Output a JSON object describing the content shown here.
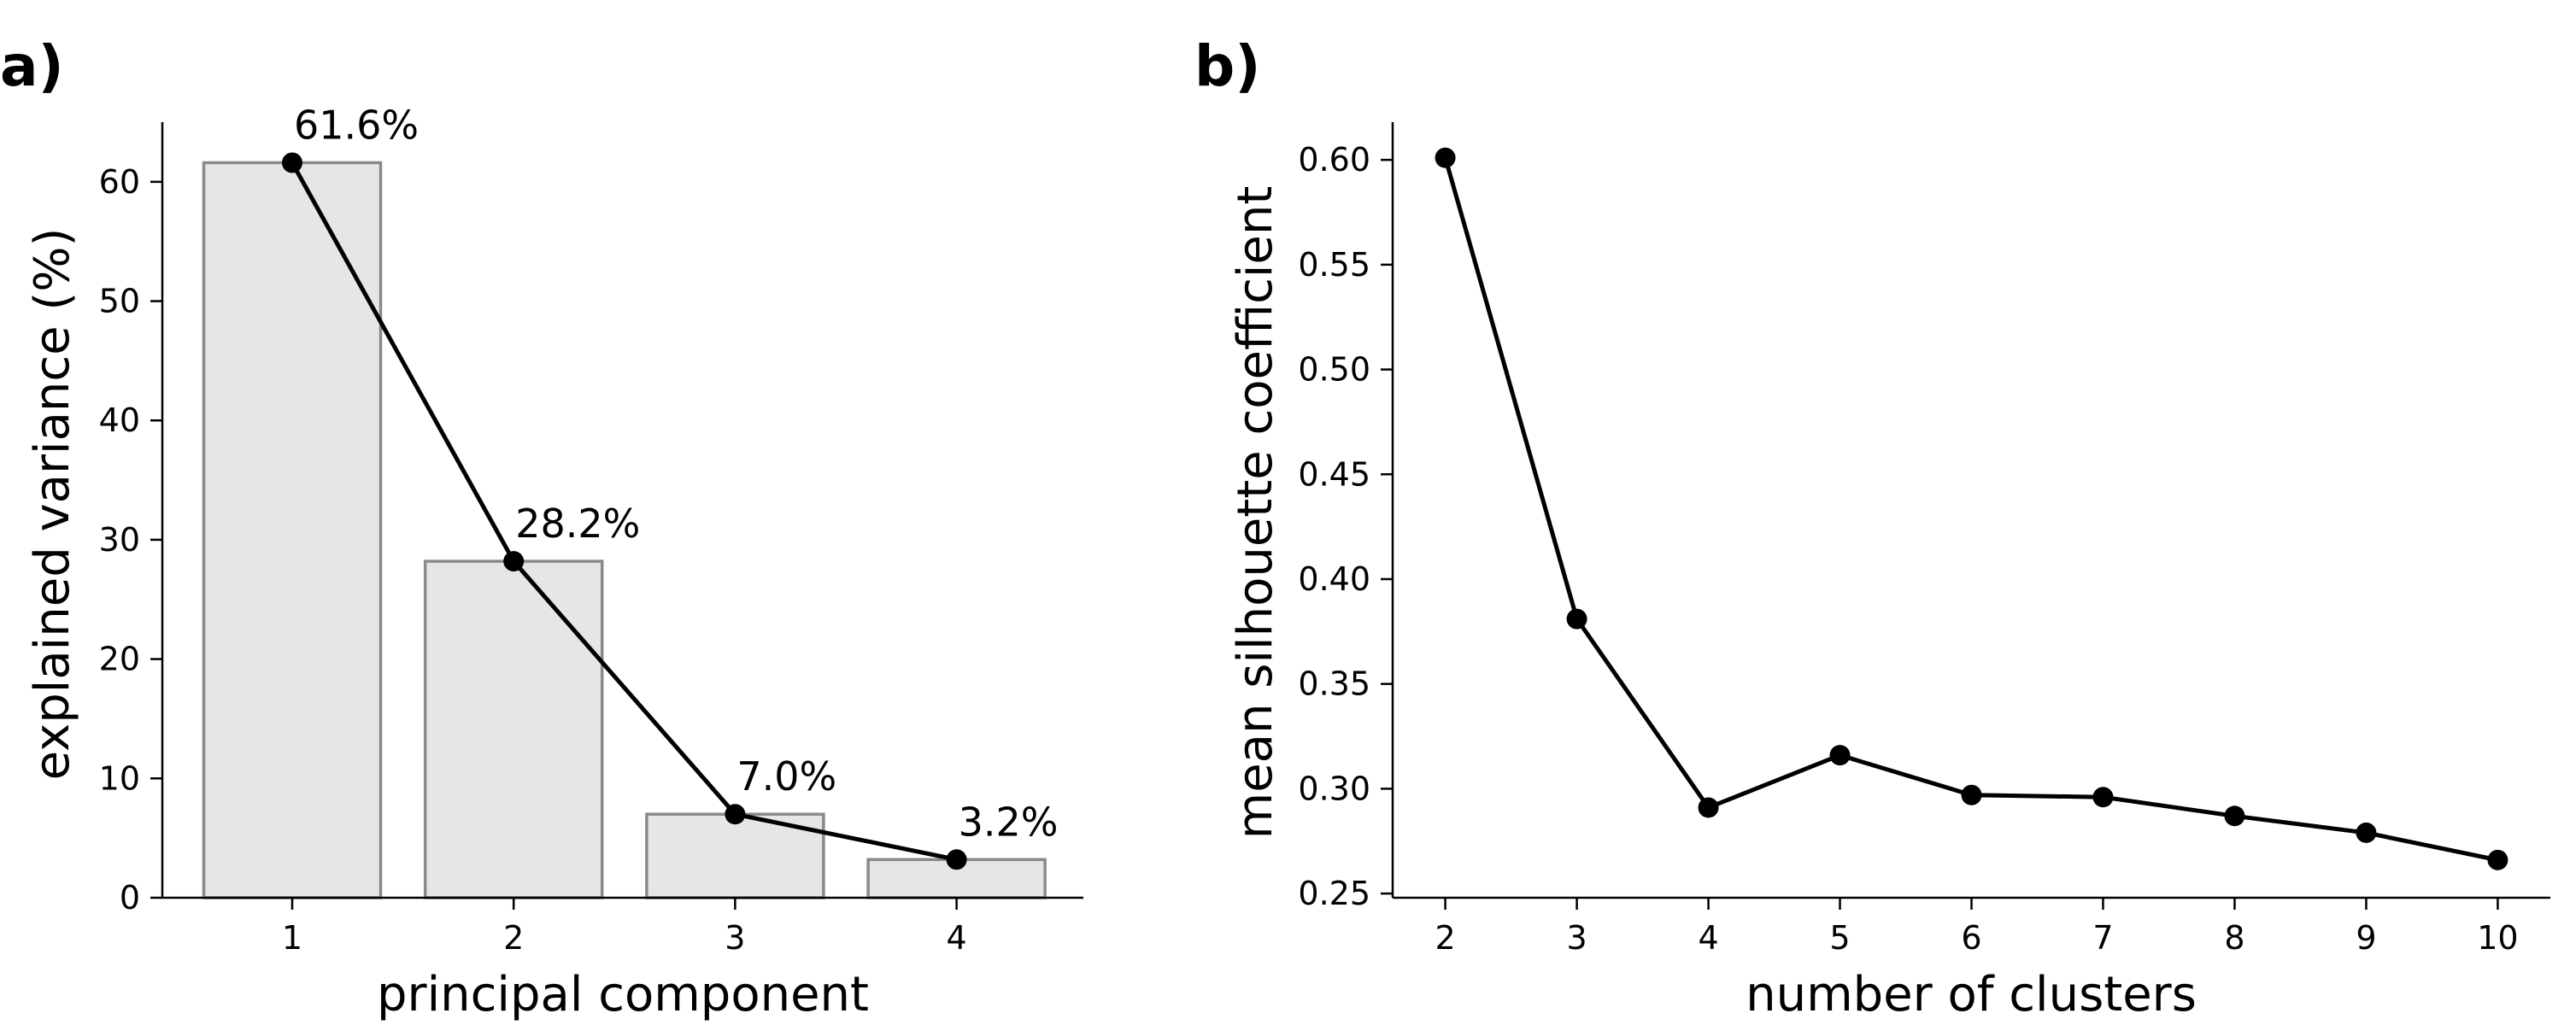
{
  "chart_data": [
    {
      "panel": "a)",
      "type": "bar",
      "categories": [
        "1",
        "2",
        "3",
        "4"
      ],
      "values": [
        61.6,
        28.2,
        7.0,
        3.2
      ],
      "value_labels": [
        "61.6%",
        "28.2%",
        "7.0%",
        "3.2%"
      ],
      "line_overlay": true,
      "xlabel": "principal component",
      "ylabel": "explained variance (%)",
      "ylim": [
        0,
        65
      ],
      "yticks": [
        0,
        10,
        20,
        30,
        40,
        50,
        60
      ],
      "grid": false,
      "bar_fill": "#e6e6e6",
      "bar_edge": "#8a8a8a",
      "line_color": "#000000"
    },
    {
      "panel": "b)",
      "type": "line",
      "x": [
        2,
        3,
        4,
        5,
        6,
        7,
        8,
        9,
        10
      ],
      "y": [
        0.601,
        0.381,
        0.291,
        0.316,
        0.297,
        0.296,
        0.287,
        0.279,
        0.266
      ],
      "xlabel": "number of clusters",
      "ylabel": "mean silhouette coefficient",
      "xlim": [
        1.6,
        10.4
      ],
      "ylim": [
        0.248,
        0.618
      ],
      "yticks": [
        0.25,
        0.3,
        0.35,
        0.4,
        0.45,
        0.5,
        0.55,
        0.6
      ],
      "ytick_labels": [
        "0.25",
        "0.30",
        "0.35",
        "0.40",
        "0.45",
        "0.50",
        "0.55",
        "0.60"
      ],
      "grid": false,
      "line_color": "#000000"
    }
  ]
}
